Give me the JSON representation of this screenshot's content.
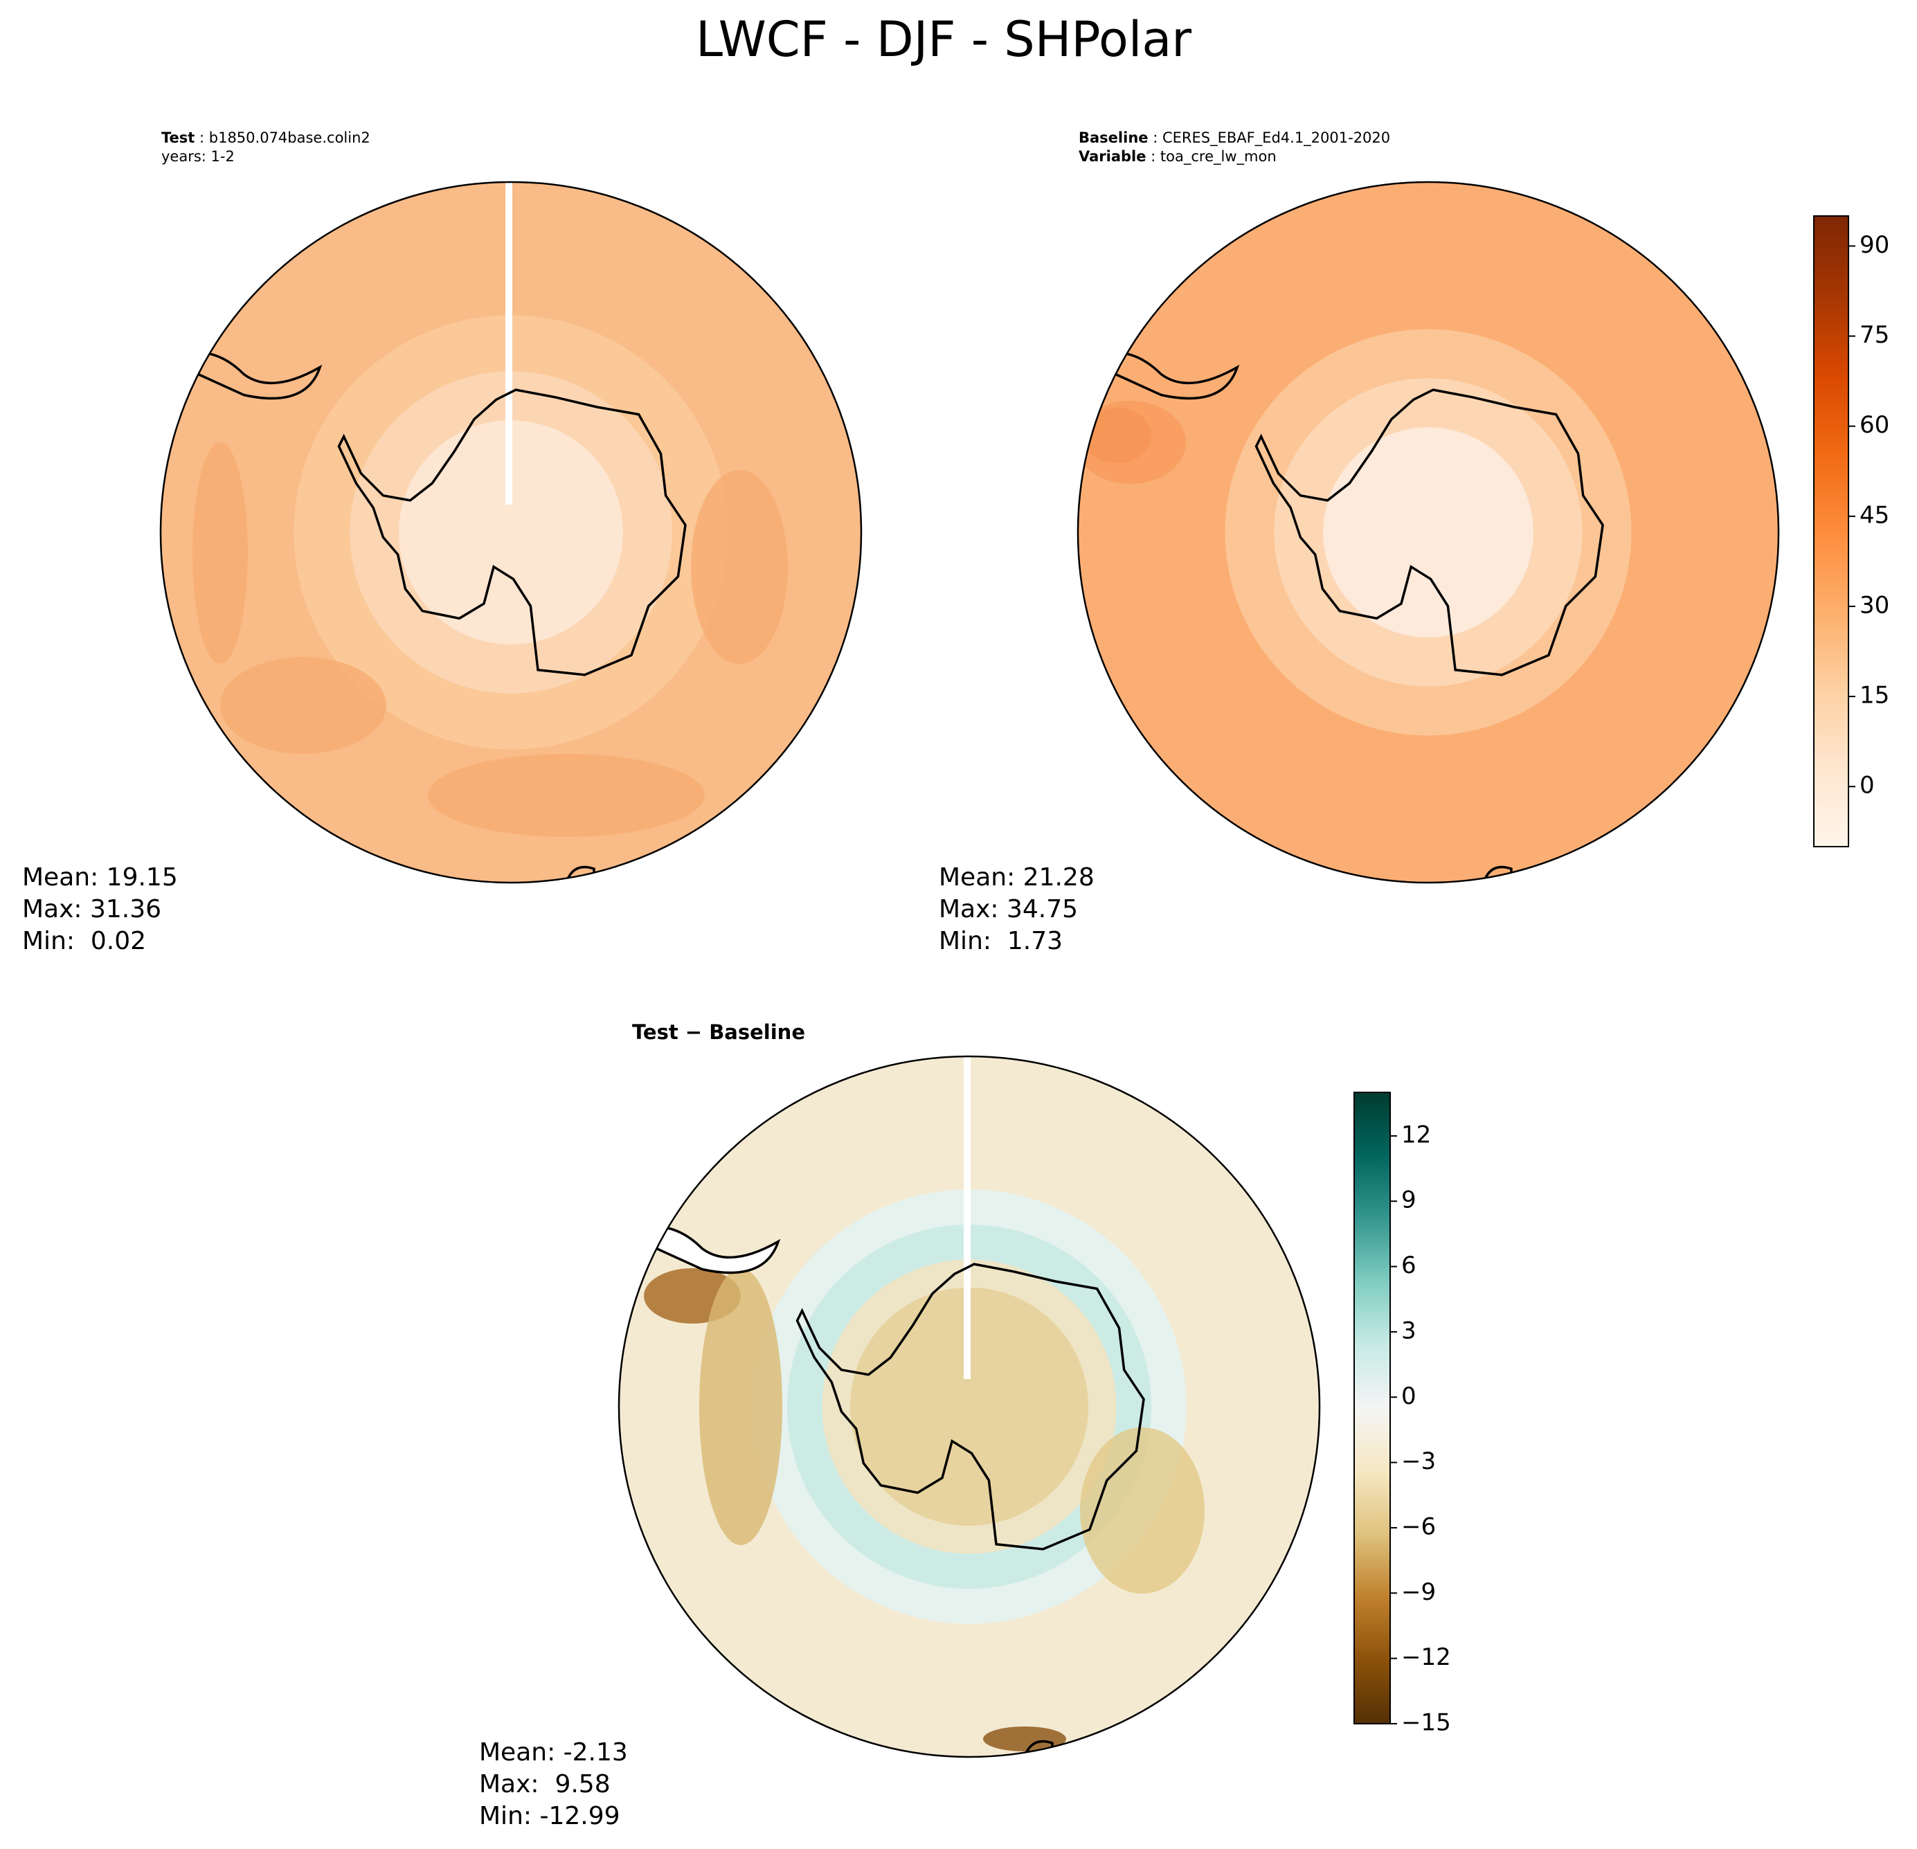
{
  "title": "LWCF - DJF - SHPolar",
  "panels": [
    {
      "header": [
        [
          {
            "text": "Test",
            "bold": true
          },
          {
            "text": " : b1850.074base.colin2",
            "bold": false
          }
        ],
        [
          {
            "text": "years: 1-2",
            "bold": false
          }
        ]
      ],
      "stats": [
        "Mean: 19.15",
        "Max: 31.36",
        "Min:  0.02"
      ]
    },
    {
      "header": [
        [
          {
            "text": "Baseline",
            "bold": true
          },
          {
            "text": " : CERES_EBAF_Ed4.1_2001-2020",
            "bold": false
          }
        ],
        [
          {
            "text": "Variable",
            "bold": true
          },
          {
            "text": " : toa_cre_lw_mon",
            "bold": false
          }
        ]
      ],
      "stats": [
        "Mean: 21.28",
        "Max: 34.75",
        "Min:  1.73"
      ]
    },
    {
      "header": [
        [
          {
            "text": "Test − Baseline",
            "bold": true
          }
        ]
      ],
      "stats": [
        "Mean: -2.13",
        "Max:  9.58",
        "Min: -12.99"
      ]
    }
  ],
  "colorbars": [
    {
      "ylim": [
        -10,
        95
      ],
      "yticks": [
        0,
        15,
        30,
        45,
        60,
        75,
        90
      ],
      "colormap": [
        "#fff5eb",
        "#fee6ce",
        "#fdd0a2",
        "#fdae6b",
        "#fd8d3c",
        "#f16913",
        "#d94801",
        "#a63603",
        "#7f2704"
      ]
    },
    {
      "ylim": [
        -15,
        14
      ],
      "yticks": [
        {
          "value": -15,
          "label": "−15"
        },
        {
          "value": -12,
          "label": "−12"
        },
        {
          "value": -9,
          "label": "−9"
        },
        {
          "value": -6,
          "label": "−6"
        },
        {
          "value": -3,
          "label": "−3"
        },
        0,
        3,
        6,
        9,
        12
      ],
      "colormap": [
        "#543005",
        "#8c510a",
        "#bf812d",
        "#dfc27d",
        "#f6e8c3",
        "#f5f5f5",
        "#c7eae5",
        "#80cdc1",
        "#35978f",
        "#01665e",
        "#003c30"
      ]
    }
  ]
}
